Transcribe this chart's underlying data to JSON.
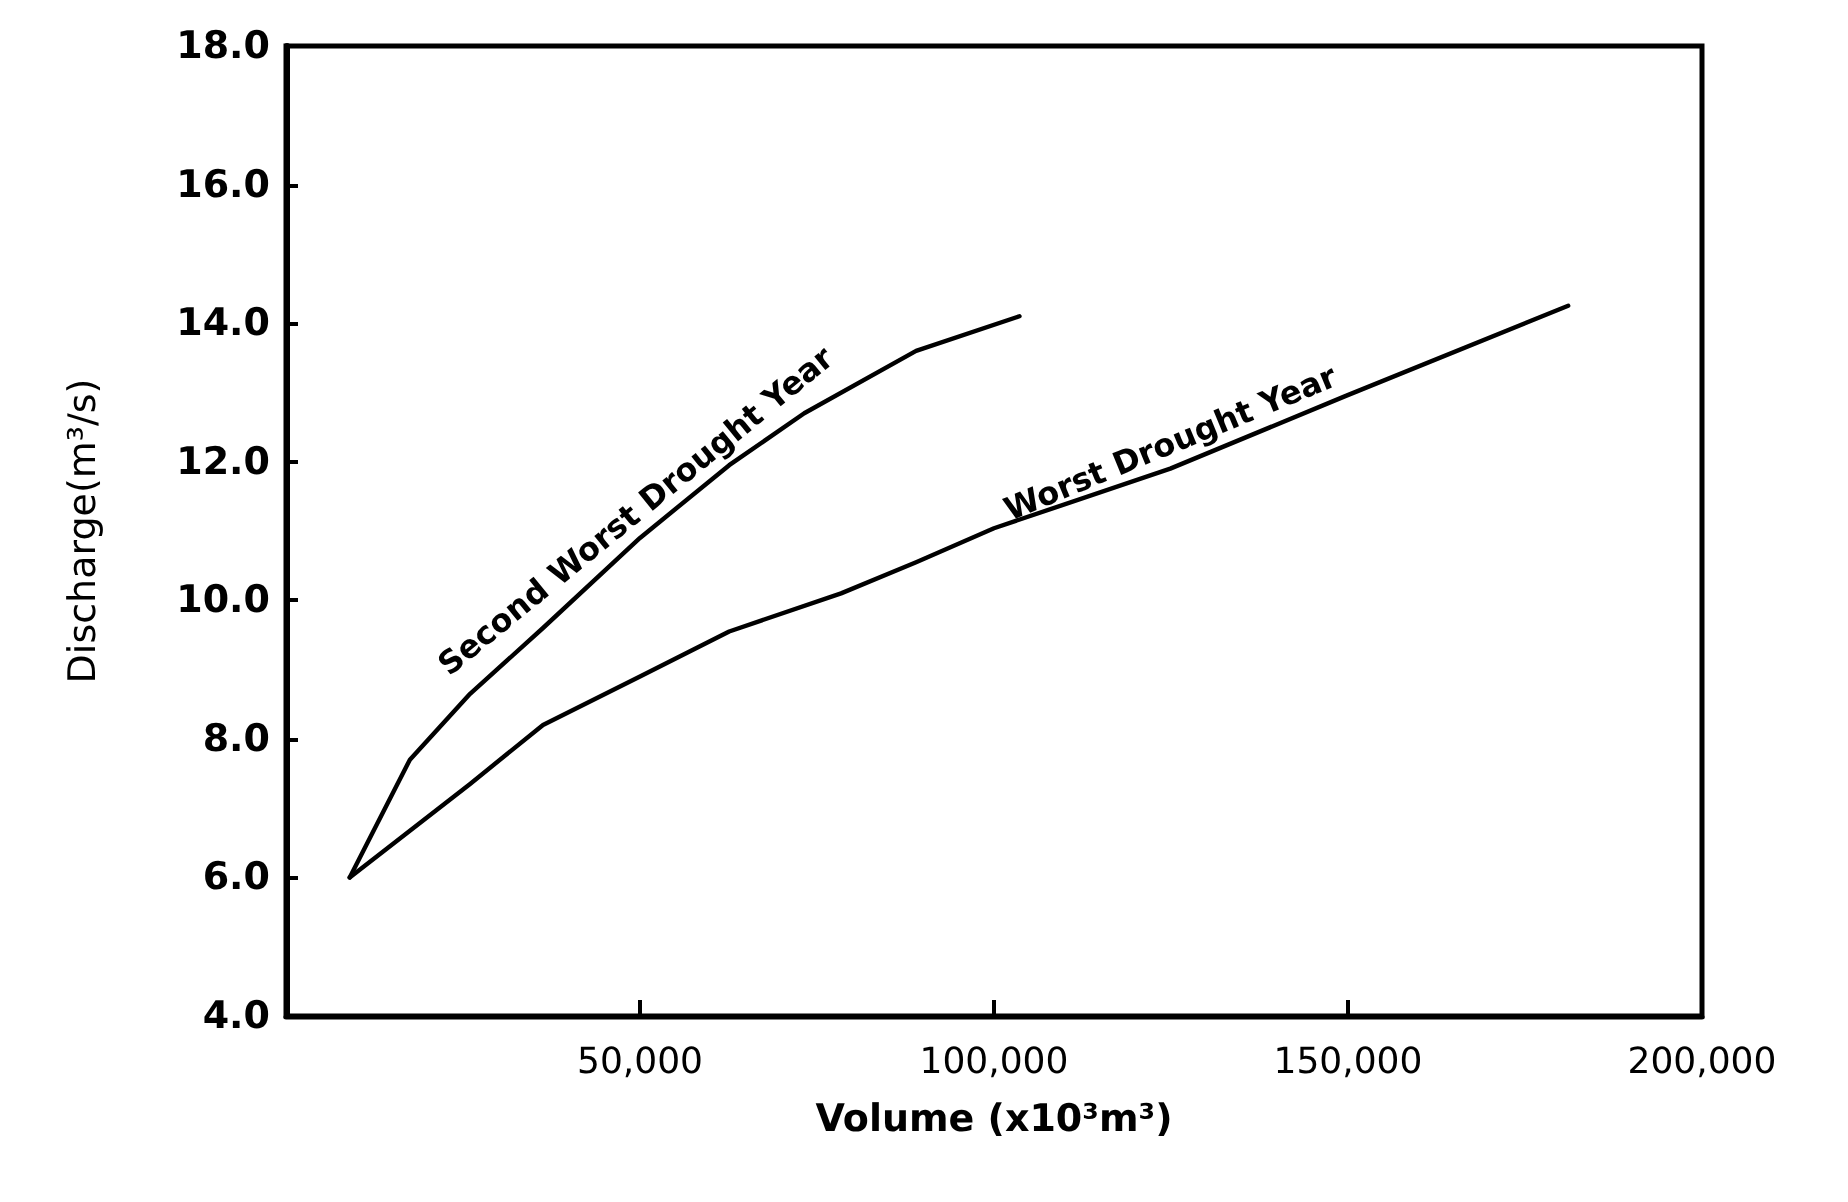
{
  "chart_data": {
    "type": "line",
    "xlabel": "Volume (x10³m³)",
    "ylabel": "Discharge(m³/s)",
    "xlim": [
      0,
      200000
    ],
    "ylim": [
      4,
      18
    ],
    "xticks": [
      {
        "value": 50000,
        "label": "50,000"
      },
      {
        "value": 100000,
        "label": "100,000"
      },
      {
        "value": 150000,
        "label": "150,000"
      },
      {
        "value": 200000,
        "label": "200,000"
      }
    ],
    "yticks": [
      {
        "value": 4,
        "label": "4.0"
      },
      {
        "value": 6,
        "label": "6.0"
      },
      {
        "value": 8,
        "label": "8.0"
      },
      {
        "value": 10,
        "label": "10.0"
      },
      {
        "value": 12,
        "label": "12.0"
      },
      {
        "value": 14,
        "label": "14.0"
      },
      {
        "value": 16,
        "label": "16.0"
      },
      {
        "value": 18,
        "label": "18.0"
      }
    ],
    "grid": false,
    "legend": false,
    "marker": "none",
    "line_style": "solid",
    "series": [
      {
        "name": "Second Worst Drought Year",
        "color": "#000000",
        "x": [
          9000,
          17500,
          26000,
          36300,
          50000,
          62600,
          73200,
          89000,
          103600
        ],
        "values": [
          6.0,
          7.7,
          8.65,
          9.6,
          10.9,
          11.95,
          12.7,
          13.6,
          14.1
        ]
      },
      {
        "name": "Worst Drought Year",
        "color": "#000000",
        "x": [
          9000,
          26000,
          36300,
          50000,
          62600,
          78400,
          89000,
          100000,
          124900,
          149700,
          181100
        ],
        "values": [
          6.0,
          7.35,
          8.2,
          8.9,
          9.55,
          10.1,
          10.55,
          11.04,
          11.9,
          12.95,
          14.25
        ]
      }
    ]
  }
}
